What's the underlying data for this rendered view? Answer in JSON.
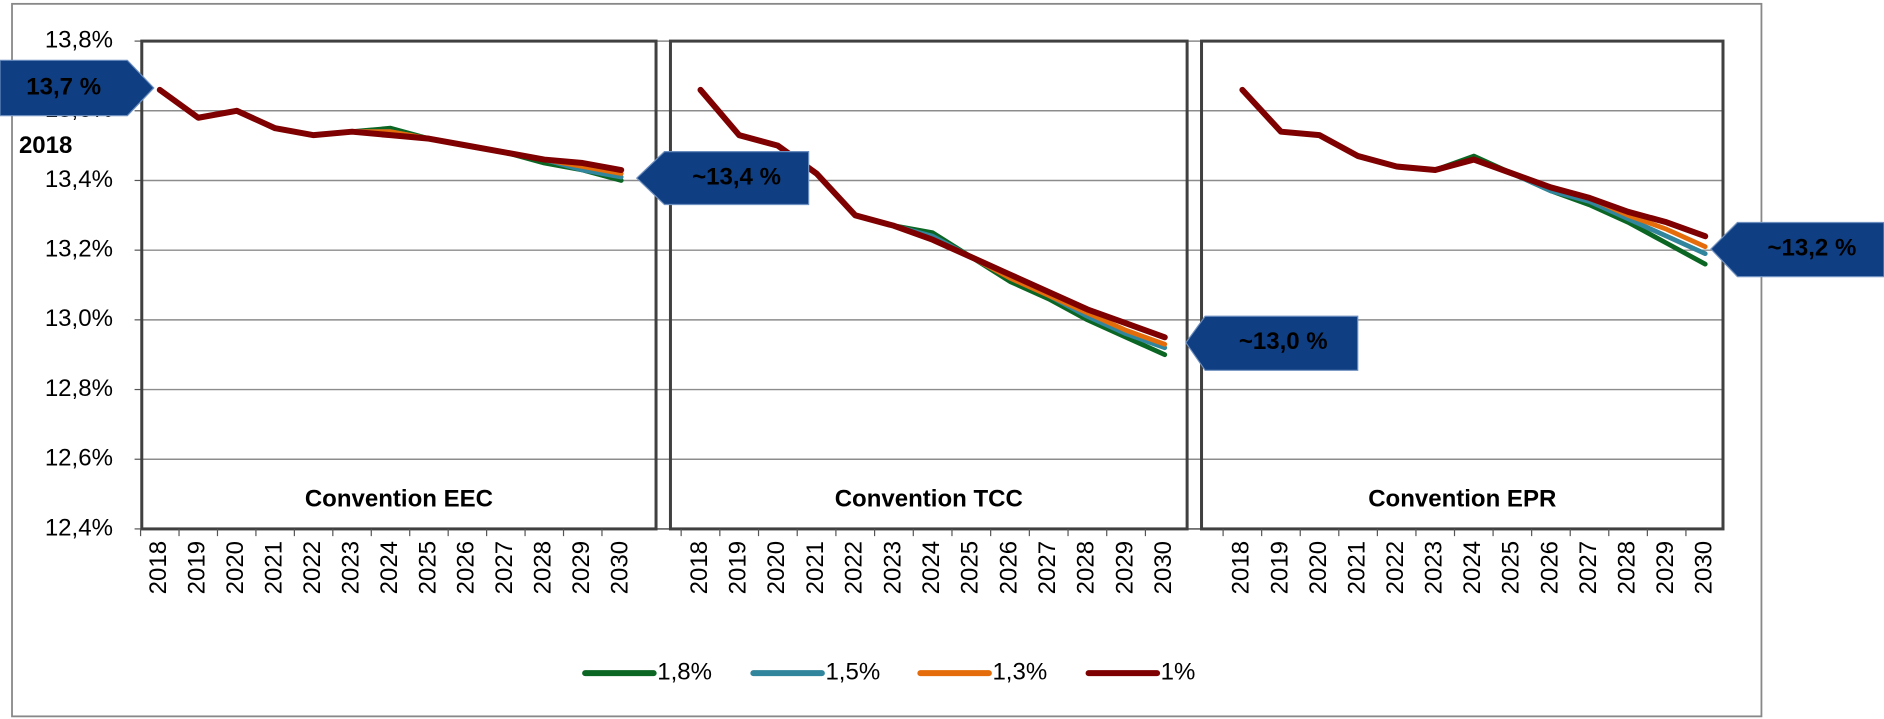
{
  "chart_data": {
    "type": "line",
    "panels": [
      "Convention EEC",
      "Convention TCC",
      "Convention EPR"
    ],
    "categories": [
      "2018",
      "2019",
      "2020",
      "2021",
      "2022",
      "2023",
      "2024",
      "2025",
      "2026",
      "2027",
      "2028",
      "2029",
      "2030"
    ],
    "ylim": [
      12.4,
      13.8
    ],
    "yticks": [
      {
        "value": 12.4,
        "label": "12,4%"
      },
      {
        "value": 12.6,
        "label": "12,6%"
      },
      {
        "value": 12.8,
        "label": "12,8%"
      },
      {
        "value": 13.0,
        "label": "13,0%"
      },
      {
        "value": 13.2,
        "label": "13,2%"
      },
      {
        "value": 13.4,
        "label": "13,4%"
      },
      {
        "value": 13.6,
        "label": "13,6%"
      },
      {
        "value": 13.8,
        "label": "13,8%"
      }
    ],
    "grid": true,
    "series": [
      {
        "name": "1,8%",
        "color": "#0b6623",
        "values": [
          [
            13.66,
            13.58,
            13.6,
            13.55,
            13.53,
            13.54,
            13.55,
            13.52,
            13.5,
            13.48,
            13.45,
            13.43,
            13.4
          ],
          [
            13.66,
            13.53,
            13.5,
            13.42,
            13.3,
            13.27,
            13.25,
            13.18,
            13.11,
            13.06,
            13.0,
            12.95,
            12.9
          ],
          [
            13.66,
            13.54,
            13.53,
            13.47,
            13.44,
            13.43,
            13.47,
            13.42,
            13.37,
            13.33,
            13.28,
            13.22,
            13.16
          ]
        ]
      },
      {
        "name": "1,5%",
        "color": "#31859c",
        "values": [
          [
            13.66,
            13.58,
            13.6,
            13.55,
            13.53,
            13.54,
            13.54,
            13.52,
            13.5,
            13.48,
            13.46,
            13.43,
            13.41
          ],
          [
            13.66,
            13.53,
            13.5,
            13.42,
            13.3,
            13.27,
            13.24,
            13.18,
            13.12,
            13.07,
            13.01,
            12.96,
            12.92
          ],
          [
            13.66,
            13.54,
            13.53,
            13.47,
            13.44,
            13.43,
            13.46,
            13.42,
            13.37,
            13.34,
            13.29,
            13.24,
            13.19
          ]
        ]
      },
      {
        "name": "1,3%",
        "color": "#e46c0a",
        "values": [
          [
            13.66,
            13.58,
            13.6,
            13.55,
            13.53,
            13.54,
            13.54,
            13.52,
            13.5,
            13.48,
            13.46,
            13.44,
            13.42
          ],
          [
            13.66,
            13.53,
            13.5,
            13.42,
            13.3,
            13.27,
            13.23,
            13.18,
            13.12,
            13.07,
            13.02,
            12.97,
            12.93
          ],
          [
            13.66,
            13.54,
            13.53,
            13.47,
            13.44,
            13.43,
            13.46,
            13.42,
            13.38,
            13.35,
            13.3,
            13.26,
            13.21
          ]
        ]
      },
      {
        "name": "1%",
        "color": "#7f0000",
        "values": [
          [
            13.66,
            13.58,
            13.6,
            13.55,
            13.53,
            13.54,
            13.53,
            13.52,
            13.5,
            13.48,
            13.46,
            13.45,
            13.43
          ],
          [
            13.66,
            13.53,
            13.5,
            13.42,
            13.3,
            13.27,
            13.23,
            13.18,
            13.13,
            13.08,
            13.03,
            12.99,
            12.95
          ],
          [
            13.66,
            13.54,
            13.53,
            13.47,
            13.44,
            13.43,
            13.46,
            13.42,
            13.38,
            13.35,
            13.31,
            13.28,
            13.24
          ]
        ]
      }
    ],
    "annotations": [
      "13,7 %",
      "2018",
      "~13,4 %",
      "~13,0 %",
      "~13,2 %"
    ]
  }
}
